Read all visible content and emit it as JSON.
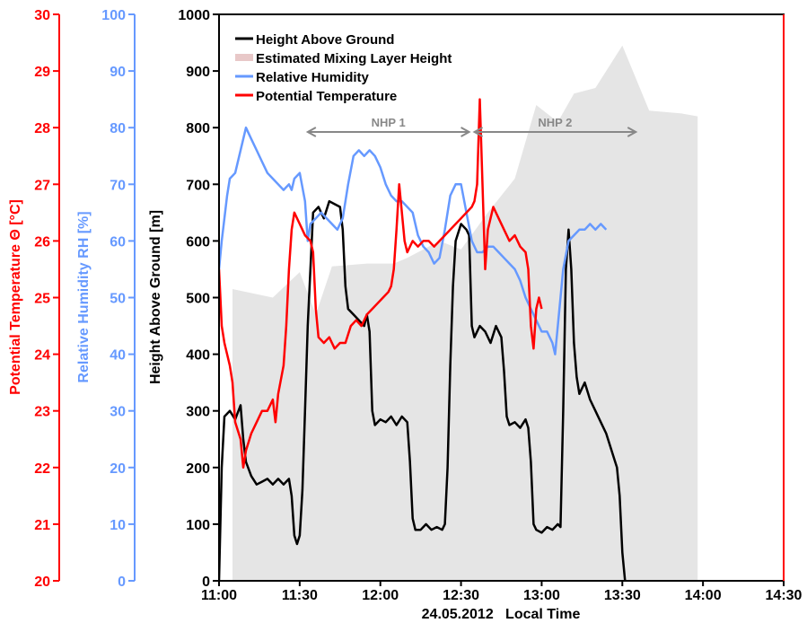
{
  "chart_data": {
    "type": "line",
    "title": "",
    "xlabel": "24.05.2012   Local Time",
    "x_ticks": [
      "11:00",
      "11:30",
      "12:00",
      "12:30",
      "13:00",
      "13:30",
      "14:00",
      "14:30"
    ],
    "x_range_minutes": [
      0,
      210
    ],
    "axes": {
      "height": {
        "label": "Height Above Ground [m]",
        "range": [
          0,
          1000
        ],
        "ticks": [
          0,
          100,
          200,
          300,
          400,
          500,
          600,
          700,
          800,
          900,
          1000
        ],
        "color": "#000000"
      },
      "humidity": {
        "label": "Relative Humidity RH [%]",
        "range": [
          0,
          100
        ],
        "ticks": [
          0,
          10,
          20,
          30,
          40,
          50,
          60,
          70,
          80,
          90,
          100
        ],
        "color": "#6699ff"
      },
      "temperature": {
        "label": "Potential Temperature Θ [°C]",
        "range": [
          20,
          30
        ],
        "ticks": [
          20,
          21,
          22,
          23,
          24,
          25,
          26,
          27,
          28,
          29,
          30
        ],
        "color": "#ff0000"
      }
    },
    "legend": {
      "position": "top-left",
      "entries": [
        {
          "label": "Height Above Ground",
          "color": "#000000"
        },
        {
          "label": "Estimated Mixing Layer Height",
          "color": "#e8c8c8"
        },
        {
          "label": "Relative Humidity",
          "color": "#6699ff"
        },
        {
          "label": "Potential Temperature",
          "color": "#ff0000"
        }
      ]
    },
    "annotations": [
      {
        "text": "NHP 1",
        "from_min": 33,
        "to_min": 93
      },
      {
        "text": "NHP 2",
        "from_min": 95,
        "to_min": 155
      }
    ],
    "series": [
      {
        "name": "Estimated Mixing Layer Height",
        "axis": "height",
        "color": "#e5e5e5",
        "points": [
          [
            5,
            0
          ],
          [
            5,
            515
          ],
          [
            20,
            500
          ],
          [
            30,
            545
          ],
          [
            36,
            470
          ],
          [
            42,
            555
          ],
          [
            55,
            560
          ],
          [
            65,
            560
          ],
          [
            70,
            570
          ],
          [
            82,
            600
          ],
          [
            90,
            585
          ],
          [
            100,
            650
          ],
          [
            110,
            710
          ],
          [
            118,
            840
          ],
          [
            126,
            810
          ],
          [
            132,
            860
          ],
          [
            140,
            870
          ],
          [
            150,
            945
          ],
          [
            160,
            830
          ],
          [
            172,
            825
          ],
          [
            178,
            820
          ],
          [
            178,
            0
          ]
        ]
      },
      {
        "name": "Height Above Ground",
        "axis": "height",
        "color": "#000000",
        "points": [
          [
            0,
            0
          ],
          [
            1,
            200
          ],
          [
            2,
            290
          ],
          [
            4,
            300
          ],
          [
            6,
            285
          ],
          [
            8,
            310
          ],
          [
            9,
            250
          ],
          [
            10,
            210
          ],
          [
            12,
            185
          ],
          [
            14,
            170
          ],
          [
            16,
            175
          ],
          [
            18,
            180
          ],
          [
            20,
            170
          ],
          [
            22,
            180
          ],
          [
            24,
            170
          ],
          [
            26,
            180
          ],
          [
            27,
            150
          ],
          [
            28,
            80
          ],
          [
            29,
            65
          ],
          [
            30,
            80
          ],
          [
            31,
            160
          ],
          [
            32,
            300
          ],
          [
            33,
            450
          ],
          [
            34,
            550
          ],
          [
            35,
            650
          ],
          [
            37,
            660
          ],
          [
            39,
            640
          ],
          [
            41,
            670
          ],
          [
            43,
            665
          ],
          [
            45,
            660
          ],
          [
            46,
            620
          ],
          [
            47,
            520
          ],
          [
            48,
            480
          ],
          [
            50,
            470
          ],
          [
            52,
            460
          ],
          [
            54,
            450
          ],
          [
            55,
            470
          ],
          [
            56,
            440
          ],
          [
            57,
            300
          ],
          [
            58,
            275
          ],
          [
            60,
            285
          ],
          [
            62,
            280
          ],
          [
            64,
            290
          ],
          [
            66,
            275
          ],
          [
            68,
            290
          ],
          [
            70,
            280
          ],
          [
            71,
            210
          ],
          [
            72,
            110
          ],
          [
            73,
            90
          ],
          [
            75,
            90
          ],
          [
            77,
            100
          ],
          [
            79,
            90
          ],
          [
            81,
            95
          ],
          [
            83,
            90
          ],
          [
            84,
            100
          ],
          [
            85,
            200
          ],
          [
            86,
            380
          ],
          [
            87,
            520
          ],
          [
            88,
            600
          ],
          [
            90,
            630
          ],
          [
            92,
            620
          ],
          [
            93,
            610
          ],
          [
            94,
            450
          ],
          [
            95,
            430
          ],
          [
            97,
            450
          ],
          [
            99,
            440
          ],
          [
            101,
            420
          ],
          [
            103,
            450
          ],
          [
            105,
            430
          ],
          [
            106,
            370
          ],
          [
            107,
            290
          ],
          [
            108,
            275
          ],
          [
            110,
            280
          ],
          [
            112,
            270
          ],
          [
            114,
            285
          ],
          [
            115,
            270
          ],
          [
            116,
            210
          ],
          [
            117,
            100
          ],
          [
            118,
            90
          ],
          [
            120,
            85
          ],
          [
            122,
            95
          ],
          [
            124,
            90
          ],
          [
            126,
            100
          ],
          [
            127,
            95
          ],
          [
            128,
            300
          ],
          [
            129,
            550
          ],
          [
            130,
            620
          ],
          [
            131,
            550
          ],
          [
            132,
            420
          ],
          [
            133,
            360
          ],
          [
            134,
            330
          ],
          [
            136,
            350
          ],
          [
            138,
            320
          ],
          [
            140,
            300
          ],
          [
            142,
            280
          ],
          [
            144,
            260
          ],
          [
            146,
            230
          ],
          [
            148,
            200
          ],
          [
            149,
            150
          ],
          [
            150,
            50
          ],
          [
            151,
            0
          ]
        ]
      },
      {
        "name": "Relative Humidity",
        "axis": "humidity",
        "color": "#6699ff",
        "points": [
          [
            0,
            55
          ],
          [
            1,
            60
          ],
          [
            2,
            64
          ],
          [
            3,
            68
          ],
          [
            4,
            71
          ],
          [
            6,
            72
          ],
          [
            8,
            76
          ],
          [
            10,
            80
          ],
          [
            12,
            78
          ],
          [
            14,
            76
          ],
          [
            16,
            74
          ],
          [
            18,
            72
          ],
          [
            20,
            71
          ],
          [
            22,
            70
          ],
          [
            24,
            69
          ],
          [
            26,
            70
          ],
          [
            27,
            69
          ],
          [
            28,
            71
          ],
          [
            30,
            72
          ],
          [
            32,
            67
          ],
          [
            33,
            60
          ],
          [
            34,
            63
          ],
          [
            36,
            64
          ],
          [
            38,
            65
          ],
          [
            40,
            64
          ],
          [
            42,
            63
          ],
          [
            44,
            62
          ],
          [
            46,
            64
          ],
          [
            48,
            70
          ],
          [
            50,
            75
          ],
          [
            52,
            76
          ],
          [
            54,
            75
          ],
          [
            56,
            76
          ],
          [
            58,
            75
          ],
          [
            60,
            73
          ],
          [
            62,
            70
          ],
          [
            64,
            68
          ],
          [
            66,
            67
          ],
          [
            68,
            67
          ],
          [
            70,
            66
          ],
          [
            72,
            65
          ],
          [
            74,
            61
          ],
          [
            76,
            59
          ],
          [
            78,
            58
          ],
          [
            80,
            56
          ],
          [
            82,
            57
          ],
          [
            84,
            62
          ],
          [
            86,
            68
          ],
          [
            88,
            70
          ],
          [
            90,
            70
          ],
          [
            92,
            65
          ],
          [
            94,
            60
          ],
          [
            96,
            58
          ],
          [
            98,
            58
          ],
          [
            100,
            59
          ],
          [
            102,
            59
          ],
          [
            104,
            58
          ],
          [
            106,
            57
          ],
          [
            108,
            56
          ],
          [
            110,
            55
          ],
          [
            112,
            53
          ],
          [
            114,
            50
          ],
          [
            116,
            48
          ],
          [
            118,
            46
          ],
          [
            120,
            44
          ],
          [
            122,
            44
          ],
          [
            124,
            42
          ],
          [
            125,
            40
          ],
          [
            126,
            45
          ],
          [
            128,
            55
          ],
          [
            130,
            60
          ],
          [
            132,
            61
          ],
          [
            134,
            62
          ],
          [
            136,
            62
          ],
          [
            138,
            63
          ],
          [
            140,
            62
          ],
          [
            142,
            63
          ],
          [
            144,
            62
          ]
        ]
      },
      {
        "name": "Potential Temperature",
        "axis": "temperature",
        "color": "#ff0000",
        "points": [
          [
            0,
            25.5
          ],
          [
            1,
            24.5
          ],
          [
            2,
            24.2
          ],
          [
            4,
            23.8
          ],
          [
            5,
            23.5
          ],
          [
            6,
            22.8
          ],
          [
            8,
            22.5
          ],
          [
            9,
            22.0
          ],
          [
            10,
            22.3
          ],
          [
            12,
            22.6
          ],
          [
            14,
            22.8
          ],
          [
            16,
            23.0
          ],
          [
            18,
            23.0
          ],
          [
            20,
            23.2
          ],
          [
            21,
            22.8
          ],
          [
            22,
            23.3
          ],
          [
            24,
            23.8
          ],
          [
            25,
            24.5
          ],
          [
            26,
            25.5
          ],
          [
            27,
            26.2
          ],
          [
            28,
            26.5
          ],
          [
            30,
            26.3
          ],
          [
            32,
            26.1
          ],
          [
            34,
            26.0
          ],
          [
            35,
            25.8
          ],
          [
            36,
            24.8
          ],
          [
            37,
            24.3
          ],
          [
            39,
            24.2
          ],
          [
            41,
            24.3
          ],
          [
            43,
            24.1
          ],
          [
            45,
            24.2
          ],
          [
            47,
            24.2
          ],
          [
            49,
            24.5
          ],
          [
            51,
            24.6
          ],
          [
            53,
            24.5
          ],
          [
            55,
            24.7
          ],
          [
            57,
            24.8
          ],
          [
            59,
            24.9
          ],
          [
            61,
            25.0
          ],
          [
            63,
            25.1
          ],
          [
            64,
            25.2
          ],
          [
            65,
            25.5
          ],
          [
            66,
            26.2
          ],
          [
            67,
            27.0
          ],
          [
            68,
            26.5
          ],
          [
            69,
            26.0
          ],
          [
            70,
            25.8
          ],
          [
            72,
            26.0
          ],
          [
            74,
            25.9
          ],
          [
            76,
            26.0
          ],
          [
            78,
            26.0
          ],
          [
            80,
            25.9
          ],
          [
            82,
            26.0
          ],
          [
            84,
            26.1
          ],
          [
            86,
            26.2
          ],
          [
            88,
            26.3
          ],
          [
            90,
            26.4
          ],
          [
            92,
            26.5
          ],
          [
            94,
            26.6
          ],
          [
            95,
            26.7
          ],
          [
            96,
            27.0
          ],
          [
            97,
            28.5
          ],
          [
            98,
            27.0
          ],
          [
            99,
            25.5
          ],
          [
            100,
            26.2
          ],
          [
            102,
            26.6
          ],
          [
            104,
            26.4
          ],
          [
            106,
            26.2
          ],
          [
            108,
            26.0
          ],
          [
            110,
            26.1
          ],
          [
            112,
            25.9
          ],
          [
            114,
            25.8
          ],
          [
            115,
            25.5
          ],
          [
            116,
            24.5
          ],
          [
            117,
            24.1
          ],
          [
            118,
            24.8
          ],
          [
            119,
            25.0
          ],
          [
            120,
            24.8
          ]
        ]
      }
    ]
  }
}
